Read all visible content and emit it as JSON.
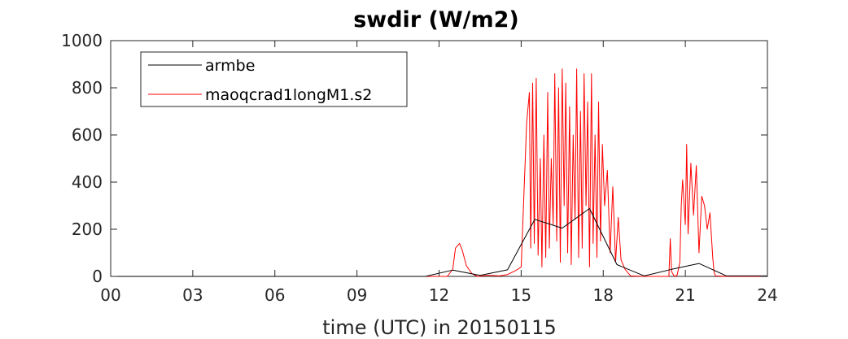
{
  "chart_data": {
    "type": "line",
    "title": "swdir  (W/m2)",
    "xlabel": "time (UTC) in 20150115",
    "ylabel": "",
    "xlim": [
      0,
      24
    ],
    "ylim": [
      0,
      1000
    ],
    "xticks": [
      0,
      3,
      6,
      9,
      12,
      15,
      18,
      21,
      24
    ],
    "xtick_labels": [
      "00",
      "03",
      "06",
      "09",
      "12",
      "15",
      "18",
      "21",
      "24"
    ],
    "yticks": [
      0,
      200,
      400,
      600,
      800,
      1000
    ],
    "ytick_labels": [
      "0",
      "200",
      "400",
      "600",
      "800",
      "1000"
    ],
    "grid": false,
    "legend_position": "top-left",
    "series": [
      {
        "name": "armbe",
        "color": "#000000",
        "x": [
          0,
          11.5,
          12.5,
          13.5,
          14.5,
          15.5,
          16.5,
          17.5,
          18.5,
          19.5,
          20.5,
          21.5,
          22.5,
          24
        ],
        "y": [
          0,
          0,
          27,
          4,
          28,
          242,
          205,
          288,
          50,
          2,
          30,
          55,
          2,
          2
        ]
      },
      {
        "name": "maoqcrad1longM1.s2",
        "color": "#ff0000",
        "x": [
          0,
          12.1,
          12.3,
          12.5,
          12.6,
          12.75,
          12.85,
          13.0,
          13.2,
          13.4,
          13.8,
          14.2,
          14.5,
          14.8,
          15.0,
          15.2,
          15.3,
          15.35,
          15.42,
          15.48,
          15.55,
          15.62,
          15.7,
          15.76,
          15.83,
          15.9,
          15.97,
          16.03,
          16.1,
          16.17,
          16.23,
          16.3,
          16.37,
          16.43,
          16.5,
          16.57,
          16.63,
          16.7,
          16.77,
          16.83,
          16.9,
          16.97,
          17.03,
          17.1,
          17.17,
          17.23,
          17.3,
          17.37,
          17.43,
          17.5,
          17.57,
          17.63,
          17.7,
          17.77,
          17.83,
          17.9,
          17.97,
          18.05,
          18.15,
          18.25,
          18.35,
          18.45,
          18.55,
          18.65,
          18.8,
          19.0,
          19.5,
          20.0,
          20.2,
          20.4,
          20.45,
          20.5,
          20.6,
          20.7,
          20.8,
          20.85,
          20.9,
          21.0,
          21.05,
          21.1,
          21.2,
          21.3,
          21.4,
          21.5,
          21.6,
          21.7,
          21.8,
          21.9,
          22.0,
          22.05,
          22.1,
          22.5,
          24
        ],
        "y": [
          0,
          0,
          0,
          30,
          120,
          140,
          110,
          45,
          12,
          0,
          5,
          2,
          8,
          25,
          40,
          650,
          780,
          120,
          820,
          140,
          840,
          90,
          500,
          40,
          600,
          80,
          780,
          120,
          500,
          220,
          860,
          150,
          800,
          60,
          880,
          300,
          820,
          100,
          720,
          50,
          600,
          240,
          880,
          80,
          700,
          120,
          860,
          300,
          740,
          40,
          860,
          140,
          600,
          80,
          740,
          150,
          560,
          300,
          450,
          100,
          380,
          60,
          250,
          70,
          30,
          2,
          0,
          0,
          0,
          0,
          160,
          20,
          0,
          5,
          60,
          300,
          410,
          220,
          560,
          180,
          480,
          260,
          470,
          100,
          340,
          300,
          200,
          270,
          80,
          20,
          2,
          0,
          0
        ]
      }
    ]
  }
}
